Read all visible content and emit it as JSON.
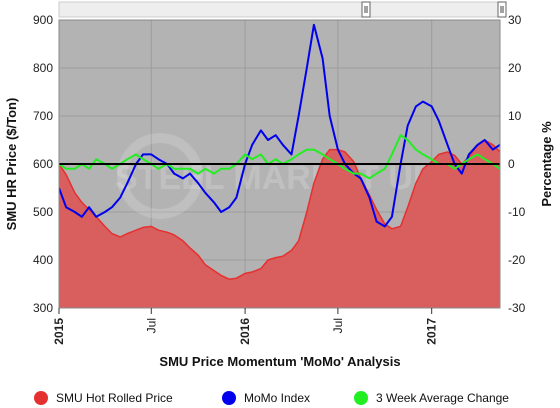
{
  "chart_data": {
    "type": "line",
    "title": "SMU Price Momentum 'MoMo' Analysis",
    "watermark": "STEEL MARKET UPDATE",
    "ylabel": "SMU HR Price ($/Ton)",
    "y2label": "Percentage %",
    "ylim": [
      300,
      900
    ],
    "y2lim": [
      -30,
      30
    ],
    "yticks": [
      300,
      400,
      500,
      600,
      700,
      800,
      900
    ],
    "y2ticks": [
      -30,
      -20,
      -10,
      0,
      10,
      20,
      30
    ],
    "xlim": [
      "2015-01-01",
      "2017-05-15"
    ],
    "xticks": [
      {
        "date": "2015-01-01",
        "label": "2015",
        "bold": true
      },
      {
        "date": "2015-07-01",
        "label": "Jul",
        "bold": false
      },
      {
        "date": "2016-01-01",
        "label": "2016",
        "bold": true
      },
      {
        "date": "2016-07-01",
        "label": "Jul",
        "bold": false
      },
      {
        "date": "2017-01-01",
        "label": "2017",
        "bold": true
      }
    ],
    "grid": true,
    "background_color": "#b3b3b3",
    "legend_position": "bottom",
    "series": [
      {
        "name": "SMU Hot Rolled Price",
        "axis": "left",
        "style": "area",
        "color": "#e53030",
        "fill": "#d95f5f",
        "points": [
          [
            "2015-01-01",
            600
          ],
          [
            "2015-01-15",
            578
          ],
          [
            "2015-02-01",
            540
          ],
          [
            "2015-02-15",
            520
          ],
          [
            "2015-03-01",
            505
          ],
          [
            "2015-03-15",
            490
          ],
          [
            "2015-04-01",
            470
          ],
          [
            "2015-04-15",
            455
          ],
          [
            "2015-05-01",
            448
          ],
          [
            "2015-05-15",
            455
          ],
          [
            "2015-06-01",
            462
          ],
          [
            "2015-06-15",
            468
          ],
          [
            "2015-07-01",
            470
          ],
          [
            "2015-07-15",
            462
          ],
          [
            "2015-08-01",
            458
          ],
          [
            "2015-08-15",
            452
          ],
          [
            "2015-09-01",
            440
          ],
          [
            "2015-09-15",
            425
          ],
          [
            "2015-10-01",
            410
          ],
          [
            "2015-10-15",
            390
          ],
          [
            "2015-11-01",
            378
          ],
          [
            "2015-11-15",
            368
          ],
          [
            "2015-12-01",
            360
          ],
          [
            "2015-12-15",
            362
          ],
          [
            "2016-01-01",
            372
          ],
          [
            "2016-01-15",
            375
          ],
          [
            "2016-02-01",
            382
          ],
          [
            "2016-02-15",
            400
          ],
          [
            "2016-03-01",
            405
          ],
          [
            "2016-03-15",
            408
          ],
          [
            "2016-04-01",
            420
          ],
          [
            "2016-04-15",
            440
          ],
          [
            "2016-05-01",
            500
          ],
          [
            "2016-05-15",
            560
          ],
          [
            "2016-06-01",
            610
          ],
          [
            "2016-06-15",
            630
          ],
          [
            "2016-07-01",
            630
          ],
          [
            "2016-07-15",
            625
          ],
          [
            "2016-08-01",
            605
          ],
          [
            "2016-08-15",
            570
          ],
          [
            "2016-09-01",
            535
          ],
          [
            "2016-09-15",
            505
          ],
          [
            "2016-10-01",
            475
          ],
          [
            "2016-10-15",
            465
          ],
          [
            "2016-11-01",
            470
          ],
          [
            "2016-11-15",
            510
          ],
          [
            "2016-12-01",
            560
          ],
          [
            "2016-12-15",
            590
          ],
          [
            "2017-01-01",
            605
          ],
          [
            "2017-01-15",
            620
          ],
          [
            "2017-02-01",
            625
          ],
          [
            "2017-02-15",
            618
          ],
          [
            "2017-03-01",
            600
          ],
          [
            "2017-03-15",
            615
          ],
          [
            "2017-04-01",
            640
          ],
          [
            "2017-04-15",
            650
          ],
          [
            "2017-05-01",
            640
          ],
          [
            "2017-05-15",
            625
          ]
        ]
      },
      {
        "name": "MoMo Index",
        "axis": "right",
        "style": "line",
        "color": "#0000ee",
        "points": [
          [
            "2015-01-01",
            -5
          ],
          [
            "2015-01-15",
            -9
          ],
          [
            "2015-02-01",
            -10
          ],
          [
            "2015-02-15",
            -11
          ],
          [
            "2015-03-01",
            -9
          ],
          [
            "2015-03-15",
            -11
          ],
          [
            "2015-04-01",
            -10
          ],
          [
            "2015-04-15",
            -9
          ],
          [
            "2015-05-01",
            -7
          ],
          [
            "2015-05-15",
            -4
          ],
          [
            "2015-06-01",
            0
          ],
          [
            "2015-06-15",
            2
          ],
          [
            "2015-07-01",
            2
          ],
          [
            "2015-07-15",
            1
          ],
          [
            "2015-08-01",
            0
          ],
          [
            "2015-08-15",
            -2
          ],
          [
            "2015-09-01",
            -3
          ],
          [
            "2015-09-15",
            -2
          ],
          [
            "2015-10-01",
            -4
          ],
          [
            "2015-10-15",
            -6
          ],
          [
            "2015-11-01",
            -8
          ],
          [
            "2015-11-15",
            -10
          ],
          [
            "2015-12-01",
            -9
          ],
          [
            "2015-12-15",
            -7
          ],
          [
            "2016-01-01",
            0
          ],
          [
            "2016-01-15",
            4
          ],
          [
            "2016-02-01",
            7
          ],
          [
            "2016-02-15",
            5
          ],
          [
            "2016-03-01",
            6
          ],
          [
            "2016-03-15",
            4
          ],
          [
            "2016-04-01",
            2
          ],
          [
            "2016-04-15",
            10
          ],
          [
            "2016-05-01",
            20
          ],
          [
            "2016-05-15",
            29
          ],
          [
            "2016-06-01",
            22
          ],
          [
            "2016-06-15",
            10
          ],
          [
            "2016-07-01",
            3
          ],
          [
            "2016-07-15",
            0
          ],
          [
            "2016-08-01",
            -2
          ],
          [
            "2016-08-15",
            -3
          ],
          [
            "2016-09-01",
            -7
          ],
          [
            "2016-09-15",
            -12
          ],
          [
            "2016-10-01",
            -13
          ],
          [
            "2016-10-15",
            -11
          ],
          [
            "2016-11-01",
            0
          ],
          [
            "2016-11-15",
            8
          ],
          [
            "2016-12-01",
            12
          ],
          [
            "2016-12-15",
            13
          ],
          [
            "2017-01-01",
            12
          ],
          [
            "2017-01-15",
            9
          ],
          [
            "2017-02-01",
            4
          ],
          [
            "2017-02-15",
            0
          ],
          [
            "2017-03-01",
            -2
          ],
          [
            "2017-03-15",
            2
          ],
          [
            "2017-04-01",
            4
          ],
          [
            "2017-04-15",
            5
          ],
          [
            "2017-05-01",
            3
          ],
          [
            "2017-05-15",
            4
          ]
        ]
      },
      {
        "name": "3 Week Average Change",
        "axis": "right",
        "style": "line",
        "color": "#22ee22",
        "points": [
          [
            "2015-01-01",
            0
          ],
          [
            "2015-01-15",
            -1
          ],
          [
            "2015-02-01",
            -1
          ],
          [
            "2015-02-15",
            0
          ],
          [
            "2015-03-01",
            -1
          ],
          [
            "2015-03-15",
            1
          ],
          [
            "2015-04-01",
            0
          ],
          [
            "2015-04-15",
            -1
          ],
          [
            "2015-05-01",
            0
          ],
          [
            "2015-05-15",
            1
          ],
          [
            "2015-06-01",
            2
          ],
          [
            "2015-06-15",
            1
          ],
          [
            "2015-07-01",
            0
          ],
          [
            "2015-07-15",
            -1
          ],
          [
            "2015-08-01",
            0
          ],
          [
            "2015-08-15",
            -1
          ],
          [
            "2015-09-01",
            -1
          ],
          [
            "2015-09-15",
            -1
          ],
          [
            "2015-10-01",
            -2
          ],
          [
            "2015-10-15",
            -1
          ],
          [
            "2015-11-01",
            -2
          ],
          [
            "2015-11-15",
            -1
          ],
          [
            "2015-12-01",
            -1
          ],
          [
            "2015-12-15",
            0
          ],
          [
            "2016-01-01",
            2
          ],
          [
            "2016-01-15",
            1
          ],
          [
            "2016-02-01",
            2
          ],
          [
            "2016-02-15",
            0
          ],
          [
            "2016-03-01",
            1
          ],
          [
            "2016-03-15",
            0
          ],
          [
            "2016-04-01",
            1
          ],
          [
            "2016-04-15",
            2
          ],
          [
            "2016-05-01",
            3
          ],
          [
            "2016-05-15",
            3
          ],
          [
            "2016-06-01",
            2
          ],
          [
            "2016-06-15",
            1
          ],
          [
            "2016-07-01",
            0
          ],
          [
            "2016-07-15",
            -1
          ],
          [
            "2016-08-01",
            -2
          ],
          [
            "2016-08-15",
            -2
          ],
          [
            "2016-09-01",
            -3
          ],
          [
            "2016-09-15",
            -2
          ],
          [
            "2016-10-01",
            -1
          ],
          [
            "2016-10-15",
            2
          ],
          [
            "2016-11-01",
            6
          ],
          [
            "2016-11-15",
            5
          ],
          [
            "2016-12-01",
            3
          ],
          [
            "2016-12-15",
            2
          ],
          [
            "2017-01-01",
            1
          ],
          [
            "2017-01-15",
            0
          ],
          [
            "2017-02-01",
            0
          ],
          [
            "2017-02-15",
            -1
          ],
          [
            "2017-03-01",
            0
          ],
          [
            "2017-03-15",
            1
          ],
          [
            "2017-04-01",
            2
          ],
          [
            "2017-04-15",
            1
          ],
          [
            "2017-05-01",
            0
          ],
          [
            "2017-05-15",
            -1
          ]
        ]
      }
    ]
  }
}
